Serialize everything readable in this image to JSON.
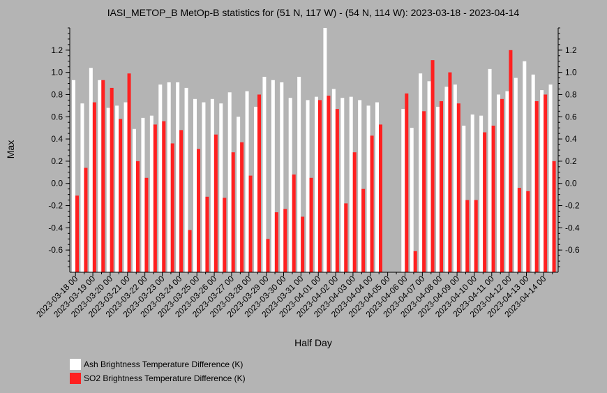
{
  "chart_data": {
    "type": "bar",
    "title": "IASI_METOP_B MetOp-B statistics for (51 N, 117 W) - (54 N, 114 W): 2023-03-18 - 2023-04-14",
    "xlabel": "Half Day",
    "ylabel": "Max",
    "ylim": [
      -0.8,
      1.4
    ],
    "yticks": [
      -0.6,
      -0.4,
      -0.2,
      0.0,
      0.2,
      0.4,
      0.6,
      0.8,
      1.0,
      1.2
    ],
    "xtick_labels": [
      "2023-03-18 00",
      "2023-03-19 00",
      "2023-03-20 00",
      "2023-03-21 00",
      "2023-03-22 00",
      "2023-03-23 00",
      "2023-03-24 00",
      "2023-03-25 00",
      "2023-03-26 00",
      "2023-03-27 00",
      "2023-03-28 00",
      "2023-03-29 00",
      "2023-03-30 00",
      "2023-03-31 00",
      "2023-04-01 00",
      "2023-04-02 00",
      "2023-04-03 00",
      "2023-04-04 00",
      "2023-04-05 00",
      "2023-04-06 00",
      "2023-04-07 00",
      "2023-04-08 00",
      "2023-04-09 00",
      "2023-04-10 00",
      "2023-04-11 00",
      "2023-04-12 00",
      "2023-04-13 00",
      "2023-04-14 00"
    ],
    "series": [
      {
        "name": "Ash Brightness Temperature Difference (K)",
        "color": "#ffffff",
        "values": [
          0.93,
          0.72,
          1.04,
          0.93,
          0.68,
          0.7,
          0.73,
          0.49,
          0.59,
          0.61,
          0.89,
          0.91,
          0.91,
          0.86,
          0.76,
          0.73,
          0.76,
          0.72,
          0.82,
          0.6,
          0.83,
          0.69,
          0.96,
          0.93,
          0.91,
          0.77,
          0.96,
          0.75,
          0.78,
          1.4,
          0.85,
          0.77,
          0.78,
          0.75,
          0.7,
          0.73,
          null,
          null,
          0.67,
          0.5,
          0.99,
          0.92,
          0.69,
          0.87,
          0.89,
          0.52,
          0.62,
          0.61,
          1.03,
          0.8,
          0.83,
          0.95,
          1.1,
          0.98,
          0.84,
          0.89
        ]
      },
      {
        "name": "SO2 Brightness Temperature Difference (K)",
        "color": "#ff2020",
        "values": [
          -0.11,
          0.14,
          0.73,
          0.93,
          0.86,
          0.58,
          0.99,
          0.2,
          0.05,
          0.53,
          0.56,
          0.36,
          0.48,
          -0.42,
          0.31,
          -0.12,
          0.44,
          -0.13,
          0.28,
          0.37,
          0.07,
          0.8,
          -0.5,
          -0.26,
          -0.23,
          0.08,
          -0.3,
          0.05,
          0.75,
          0.79,
          0.67,
          -0.18,
          0.28,
          -0.05,
          0.43,
          0.53,
          null,
          null,
          0.81,
          -0.61,
          0.65,
          1.11,
          0.74,
          1.0,
          0.72,
          -0.15,
          -0.15,
          0.46,
          0.52,
          0.76,
          1.2,
          -0.04,
          -0.07,
          0.74,
          0.8,
          0.2
        ]
      }
    ],
    "legend_placement": "bottom-left",
    "grid": false
  }
}
